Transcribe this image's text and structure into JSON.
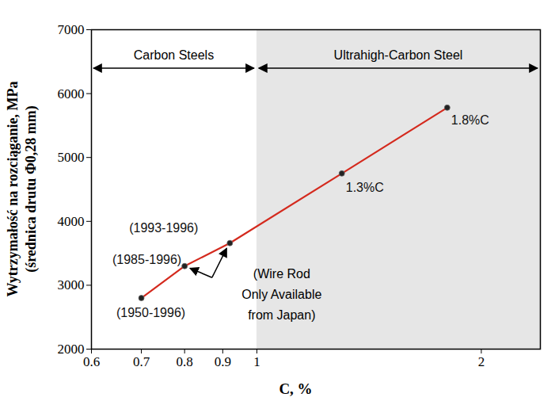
{
  "chart_data": {
    "type": "line",
    "xlabel": "C, %",
    "ylabel": "Wytrzymałość na rozciąganie, MPa\n(średnica drutu Φ0,28 mm)",
    "x": [
      0.7,
      0.8,
      0.92,
      1.3,
      1.8
    ],
    "values": [
      2800,
      3300,
      3660,
      4750,
      5780
    ],
    "color": "#d42a1e",
    "marker": "circle",
    "log": "x",
    "grid": false,
    "xlim": [
      0.6,
      2.4
    ],
    "xticks": [
      0.6,
      0.7,
      0.8,
      0.9,
      1,
      2
    ],
    "ylim": [
      2000,
      7000
    ],
    "yticks": [
      2000,
      3000,
      4000,
      5000,
      6000,
      7000
    ],
    "regions": [
      {
        "label": "Carbon Steels",
        "xlim": [
          0.6,
          1
        ]
      },
      {
        "label": "Ultrahigh-Carbon Steel",
        "xlim": [
          1,
          2.4
        ],
        "color": "#e6e6e6"
      }
    ],
    "annotations": [
      {
        "text": "(1950-1996)",
        "x": 0.7,
        "y": 2800
      },
      {
        "text": "(1985-1996)",
        "x": 0.8,
        "y": 3300
      },
      {
        "text": "(1993-1996)",
        "x": 0.92,
        "y": 3660
      },
      {
        "text": "1.3%C",
        "x": 1.3,
        "y": 4750
      },
      {
        "text": "1.8%C",
        "x": 1.8,
        "y": 5780
      }
    ],
    "note": {
      "text": "(Wire Rod\nOnly Available\nfrom Japan)",
      "arrows_to": [
        {
          "x": 0.8,
          "y": 3300
        },
        {
          "x": 0.92,
          "y": 3660
        }
      ]
    }
  }
}
